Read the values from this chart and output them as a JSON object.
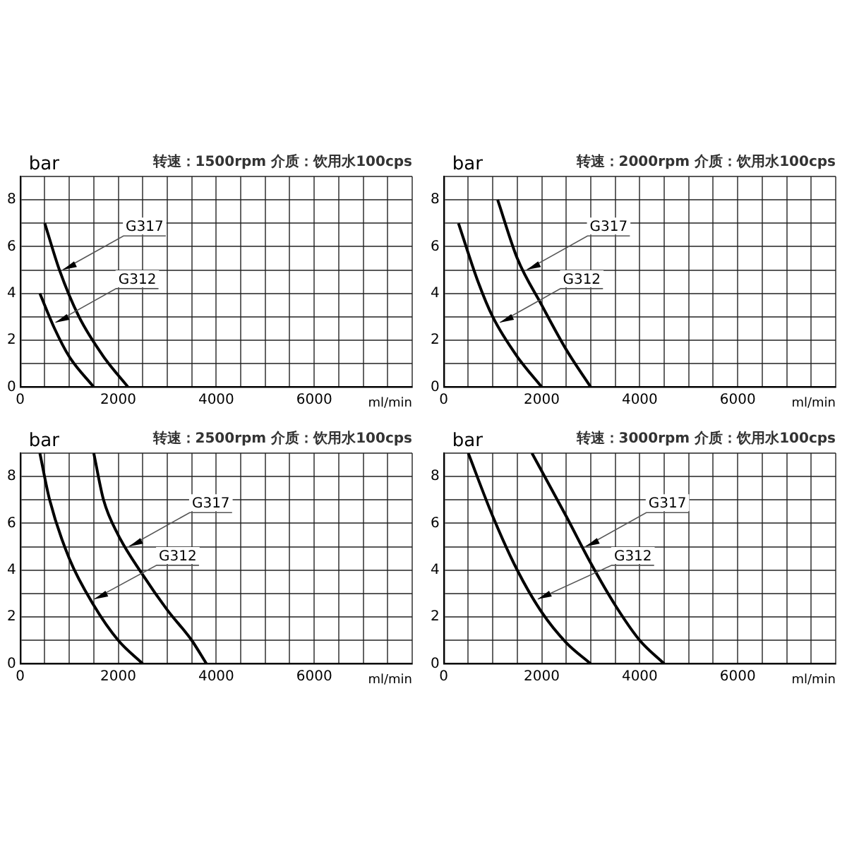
{
  "chart_data": [
    {
      "type": "line",
      "title": "转速：1500rpm 介质：饮用水100cps",
      "xlabel": "ml/min",
      "ylabel": "bar",
      "xlim": [
        0,
        8000
      ],
      "xticks": [
        0,
        2000,
        4000,
        6000
      ],
      "ylim": [
        0,
        9
      ],
      "yticks": [
        0,
        2,
        4,
        6,
        8
      ],
      "grid": true,
      "legend": false,
      "marker": "none",
      "line_style": "solid",
      "series": [
        {
          "name": "G317",
          "color": "#000000",
          "x": [
            500,
            800,
            1200,
            1700,
            2200
          ],
          "values": [
            7,
            5,
            3,
            1.3,
            0
          ]
        },
        {
          "name": "G312",
          "color": "#000000",
          "x": [
            400,
            700,
            1000,
            1500
          ],
          "values": [
            4,
            2.5,
            1.3,
            0
          ]
        }
      ]
    },
    {
      "type": "line",
      "title": "转速：2000rpm 介质：饮用水100cps",
      "xlabel": "ml/min",
      "ylabel": "bar",
      "xlim": [
        0,
        8000
      ],
      "xticks": [
        0,
        2000,
        4000,
        6000
      ],
      "ylim": [
        0,
        9
      ],
      "yticks": [
        0,
        2,
        4,
        6,
        8
      ],
      "grid": true,
      "legend": false,
      "marker": "none",
      "line_style": "solid",
      "series": [
        {
          "name": "G317",
          "color": "#000000",
          "x": [
            1100,
            1500,
            2000,
            2500,
            3000
          ],
          "values": [
            8,
            5.5,
            3.5,
            1.6,
            0
          ]
        },
        {
          "name": "G312",
          "color": "#000000",
          "x": [
            300,
            700,
            1000,
            1500,
            2000
          ],
          "values": [
            7,
            4.5,
            3,
            1.3,
            0
          ]
        }
      ]
    },
    {
      "type": "line",
      "title": "转速：2500rpm 介质：饮用水100cps",
      "xlabel": "ml/min",
      "ylabel": "bar",
      "xlim": [
        0,
        8000
      ],
      "xticks": [
        0,
        2000,
        4000,
        6000
      ],
      "ylim": [
        0,
        9
      ],
      "yticks": [
        0,
        2,
        4,
        6,
        8
      ],
      "grid": true,
      "legend": false,
      "marker": "none",
      "line_style": "solid",
      "series": [
        {
          "name": "G317",
          "color": "#000000",
          "x": [
            1500,
            1700,
            2000,
            2500,
            3000,
            3500,
            3800
          ],
          "values": [
            9,
            7,
            5.5,
            3.8,
            2.3,
            1,
            0
          ]
        },
        {
          "name": "G312",
          "color": "#000000",
          "x": [
            400,
            600,
            1000,
            1500,
            2000,
            2500
          ],
          "values": [
            9,
            7,
            4.5,
            2.5,
            1,
            0
          ]
        }
      ]
    },
    {
      "type": "line",
      "title": "转速：3000rpm 介质：饮用水100cps",
      "xlabel": "ml/min",
      "ylabel": "bar",
      "xlim": [
        0,
        8000
      ],
      "xticks": [
        0,
        2000,
        4000,
        6000
      ],
      "ylim": [
        0,
        9
      ],
      "yticks": [
        0,
        2,
        4,
        6,
        8
      ],
      "grid": true,
      "legend": false,
      "marker": "none",
      "line_style": "solid",
      "series": [
        {
          "name": "G317",
          "color": "#000000",
          "x": [
            1800,
            2500,
            3000,
            3500,
            4000,
            4500
          ],
          "values": [
            9,
            6.3,
            4.3,
            2.5,
            1,
            0
          ]
        },
        {
          "name": "G312",
          "color": "#000000",
          "x": [
            500,
            1000,
            1500,
            2000,
            2500,
            3000
          ],
          "values": [
            9,
            6.3,
            4,
            2.2,
            0.9,
            0
          ]
        }
      ]
    }
  ]
}
